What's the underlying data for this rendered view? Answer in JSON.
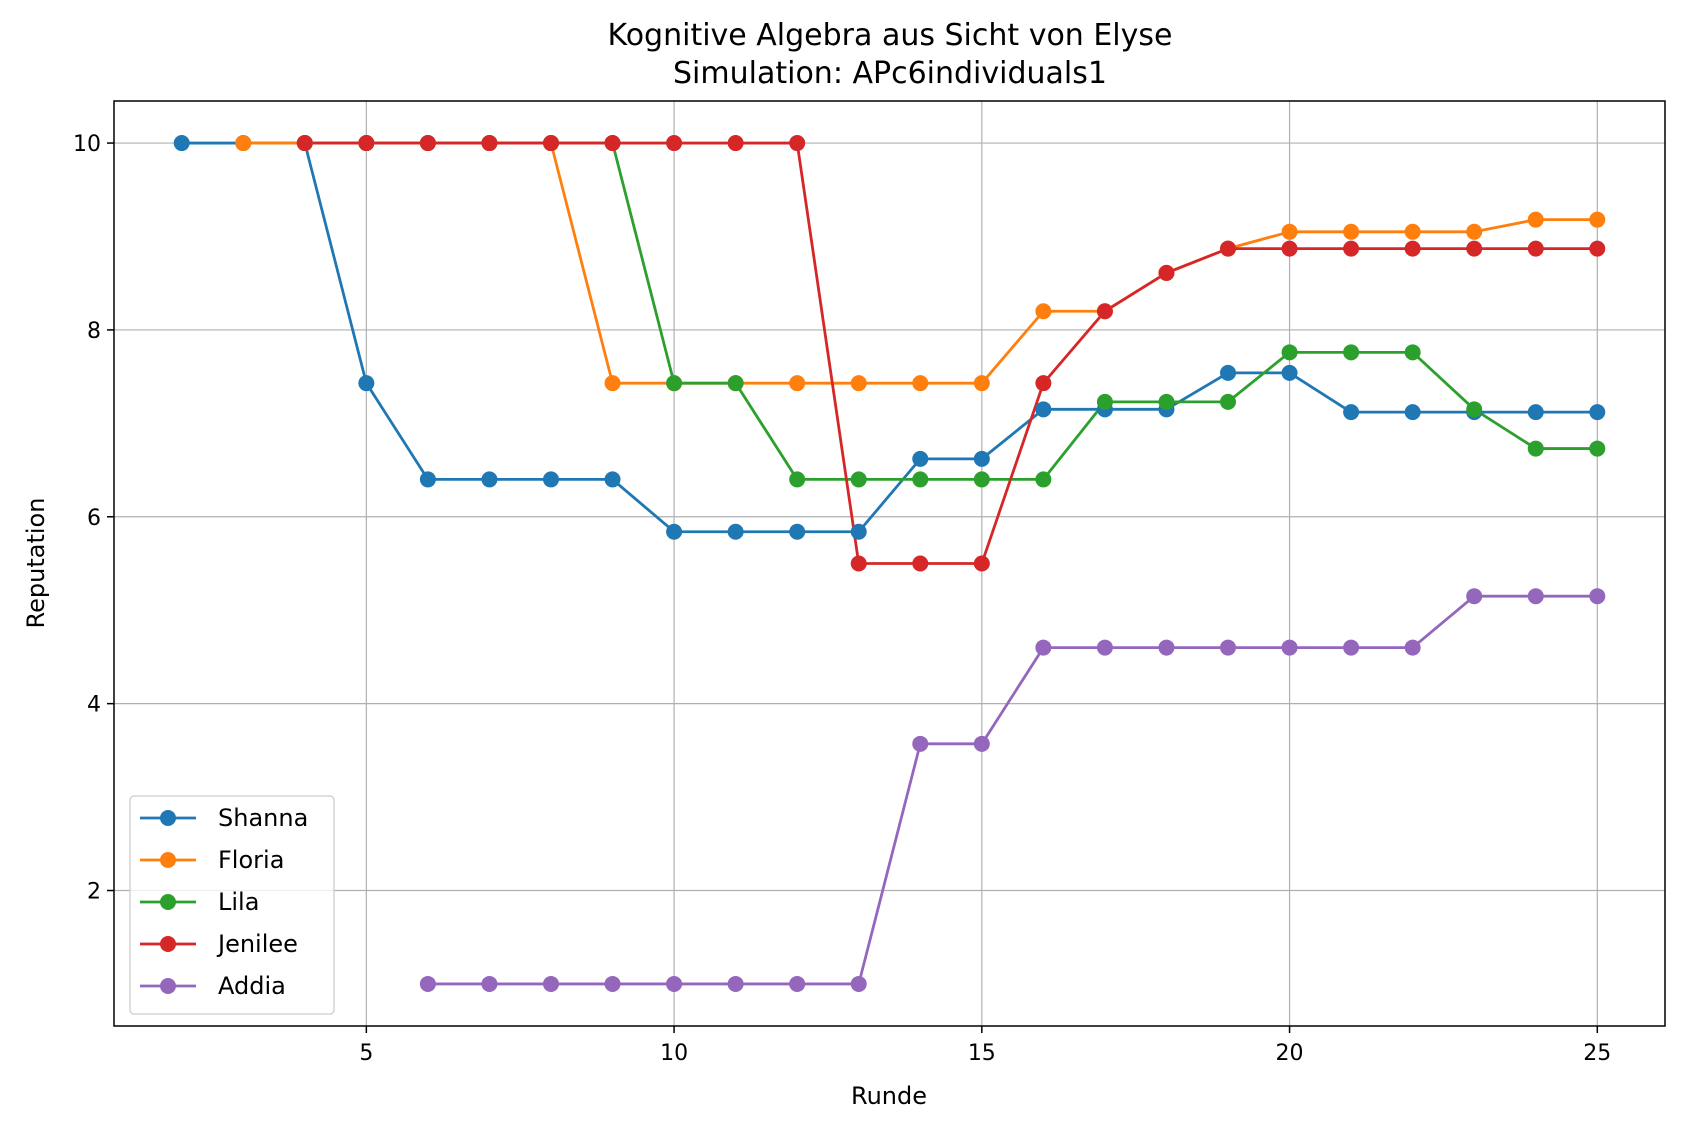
{
  "chart_data": {
    "type": "line",
    "title": "Kognitive Algebra aus Sicht von Elyse",
    "subtitle": "Simulation: APc6individuals1",
    "xlabel": "Runde",
    "ylabel": "Reputation",
    "xlim": [
      0.9,
      26.1
    ],
    "ylim": [
      0.55,
      10.45
    ],
    "xticks": [
      5,
      10,
      15,
      20,
      25
    ],
    "yticks": [
      2,
      4,
      6,
      8,
      10
    ],
    "grid": true,
    "legend_position": "lower-left",
    "series": [
      {
        "name": "Shanna",
        "color": "#1f77b4",
        "x": [
          2,
          3,
          4,
          5,
          6,
          7,
          8,
          9,
          10,
          11,
          12,
          13,
          14,
          15,
          16,
          17,
          18,
          19,
          20,
          21,
          22,
          23,
          24,
          25
        ],
        "y": [
          10,
          10,
          10,
          7.43,
          6.4,
          6.4,
          6.4,
          6.4,
          5.84,
          5.84,
          5.84,
          5.84,
          6.62,
          6.62,
          7.15,
          7.15,
          7.15,
          7.54,
          7.54,
          7.12,
          7.12,
          7.12,
          7.12,
          7.12
        ]
      },
      {
        "name": "Floria",
        "color": "#ff7f0e",
        "x": [
          3,
          4,
          5,
          6,
          7,
          8,
          9,
          10,
          11,
          12,
          13,
          14,
          15,
          16,
          17,
          18,
          19,
          20,
          21,
          22,
          23,
          24,
          25
        ],
        "y": [
          10,
          10,
          10,
          10,
          10,
          10,
          7.43,
          7.43,
          7.43,
          7.43,
          7.43,
          7.43,
          7.43,
          8.2,
          8.2,
          8.61,
          8.87,
          9.05,
          9.05,
          9.05,
          9.05,
          9.18,
          9.18
        ]
      },
      {
        "name": "Lila",
        "color": "#2ca02c",
        "x": [
          4,
          5,
          6,
          7,
          8,
          9,
          10,
          11,
          12,
          13,
          14,
          15,
          16,
          17,
          18,
          19,
          20,
          21,
          22,
          23,
          24,
          25
        ],
        "y": [
          10,
          10,
          10,
          10,
          10,
          10,
          7.43,
          7.43,
          6.4,
          6.4,
          6.4,
          6.4,
          6.4,
          7.23,
          7.23,
          7.23,
          7.76,
          7.76,
          7.76,
          7.15,
          6.73,
          6.73
        ]
      },
      {
        "name": "Jenilee",
        "color": "#d62728",
        "x": [
          4,
          5,
          6,
          7,
          8,
          9,
          10,
          11,
          12,
          13,
          14,
          15,
          16,
          17,
          18,
          19,
          20,
          21,
          22,
          23,
          24,
          25
        ],
        "y": [
          10,
          10,
          10,
          10,
          10,
          10,
          10,
          10,
          10,
          5.5,
          5.5,
          5.5,
          7.43,
          8.2,
          8.61,
          8.87,
          8.87,
          8.87,
          8.87,
          8.87,
          8.87,
          8.87
        ]
      },
      {
        "name": "Addia",
        "color": "#9467bd",
        "x": [
          6,
          7,
          8,
          9,
          10,
          11,
          12,
          13,
          14,
          15,
          16,
          17,
          18,
          19,
          20,
          21,
          22,
          23,
          24,
          25
        ],
        "y": [
          1,
          1,
          1,
          1,
          1,
          1,
          1,
          1,
          3.57,
          3.57,
          4.6,
          4.6,
          4.6,
          4.6,
          4.6,
          4.6,
          4.6,
          5.15,
          5.15,
          5.15
        ]
      }
    ]
  }
}
